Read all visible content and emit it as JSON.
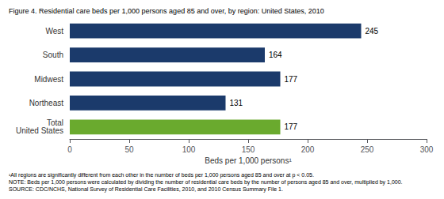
{
  "chart_data": {
    "type": "bar",
    "orientation": "horizontal",
    "title": "Figure 4. Residential care beds per 1,000 persons aged 85 and over, by region: United States, 2010",
    "categories": [
      "West",
      "South",
      "Midwest",
      "Northeast",
      "Total\nUnited States"
    ],
    "values": [
      245,
      164,
      177,
      131,
      177
    ],
    "colors": [
      "#1b3a6b",
      "#1b3a6b",
      "#1b3a6b",
      "#1b3a6b",
      "#6aaa2e"
    ],
    "xlabel": "Beds per 1,000 persons¹",
    "xlim": [
      0,
      300
    ],
    "xticks": [
      0,
      50,
      100,
      150,
      200,
      250,
      300
    ],
    "data_labels": true,
    "grid": false,
    "annotations": [
      "¹All regions are significantly different from each other in the number of beds per 1,000 persons aged 85 and over at p < 0.05.",
      "NOTE: Beds per 1,000 persons were calculated by dividing the number of residential care beds by the number of persons aged 85 and over, multiplied by 1,000.",
      "SOURCE: CDC/NCHS, National Survey of Residential Care Facilities, 2010, and 2010 Census Summary File 1."
    ]
  }
}
